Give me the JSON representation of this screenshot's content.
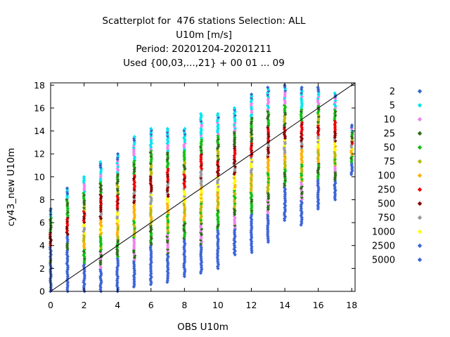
{
  "title_lines": [
    "Scatterplot for  476 stations Selection: ALL",
    "U10m [m/s]",
    "Period: 20201204-20201211",
    "Used {00,03,...,21} + 00 01 ... 09"
  ],
  "chart_data": {
    "type": "scatter",
    "title": "Scatterplot for  476 stations Selection: ALL",
    "subtitle": "U10m [m/s] | Period: 20201204-20201211 | Used {00,03,...,21} + 00 01 ... 09",
    "xlabel": "OBS U10m",
    "ylabel": "cy43_new U10m",
    "xlim": [
      0,
      18.2
    ],
    "ylim": [
      0,
      18.2
    ],
    "x_ticks": [
      0,
      2,
      4,
      6,
      8,
      10,
      12,
      14,
      16,
      18
    ],
    "y_ticks": [
      0,
      2,
      4,
      6,
      8,
      10,
      12,
      14,
      16,
      18
    ],
    "reference_line": "y = x",
    "grid": false,
    "legend_position": "right",
    "series": [
      {
        "name": "2",
        "color": "#3366cc"
      },
      {
        "name": "5",
        "color": "#00e5ee"
      },
      {
        "name": "10",
        "color": "#ee82ee"
      },
      {
        "name": "25",
        "color": "#2e6b1a"
      },
      {
        "name": "50",
        "color": "#0fbf0f"
      },
      {
        "name": "75",
        "color": "#b8b800"
      },
      {
        "name": "100",
        "color": "#ffb000"
      },
      {
        "name": "250",
        "color": "#ee0000"
      },
      {
        "name": "500",
        "color": "#8b0000"
      },
      {
        "name": "750",
        "color": "#999999"
      },
      {
        "name": "1000",
        "color": "#ffff00"
      },
      {
        "name": "2500",
        "color": "#3c64d8"
      },
      {
        "name": "5000",
        "color": "#3c64d8"
      }
    ],
    "columns": [
      {
        "x": 0,
        "ymin": 0.0,
        "ymax": 7.2
      },
      {
        "x": 1,
        "ymin": 0.0,
        "ymax": 9.0
      },
      {
        "x": 2,
        "ymin": 0.0,
        "ymax": 10.0
      },
      {
        "x": 3,
        "ymin": 0.0,
        "ymax": 11.3
      },
      {
        "x": 4,
        "ymin": 0.0,
        "ymax": 12.0
      },
      {
        "x": 5,
        "ymin": 0.4,
        "ymax": 13.5
      },
      {
        "x": 6,
        "ymin": 0.6,
        "ymax": 14.2
      },
      {
        "x": 7,
        "ymin": 0.8,
        "ymax": 14.2
      },
      {
        "x": 8,
        "ymin": 1.3,
        "ymax": 14.2
      },
      {
        "x": 9,
        "ymin": 1.6,
        "ymax": 15.5
      },
      {
        "x": 10,
        "ymin": 2.0,
        "ymax": 15.5
      },
      {
        "x": 11,
        "ymin": 3.2,
        "ymax": 16.0
      },
      {
        "x": 12,
        "ymin": 3.4,
        "ymax": 17.2
      },
      {
        "x": 13,
        "ymin": 4.3,
        "ymax": 17.8
      },
      {
        "x": 14,
        "ymin": 6.2,
        "ymax": 18.0
      },
      {
        "x": 15,
        "ymin": 5.8,
        "ymax": 17.8
      },
      {
        "x": 16,
        "ymin": 7.2,
        "ymax": 17.8
      },
      {
        "x": 17,
        "ymin": 8.0,
        "ymax": 17.3
      },
      {
        "x": 18,
        "ymin": 10.2,
        "ymax": 14.5
      }
    ]
  }
}
